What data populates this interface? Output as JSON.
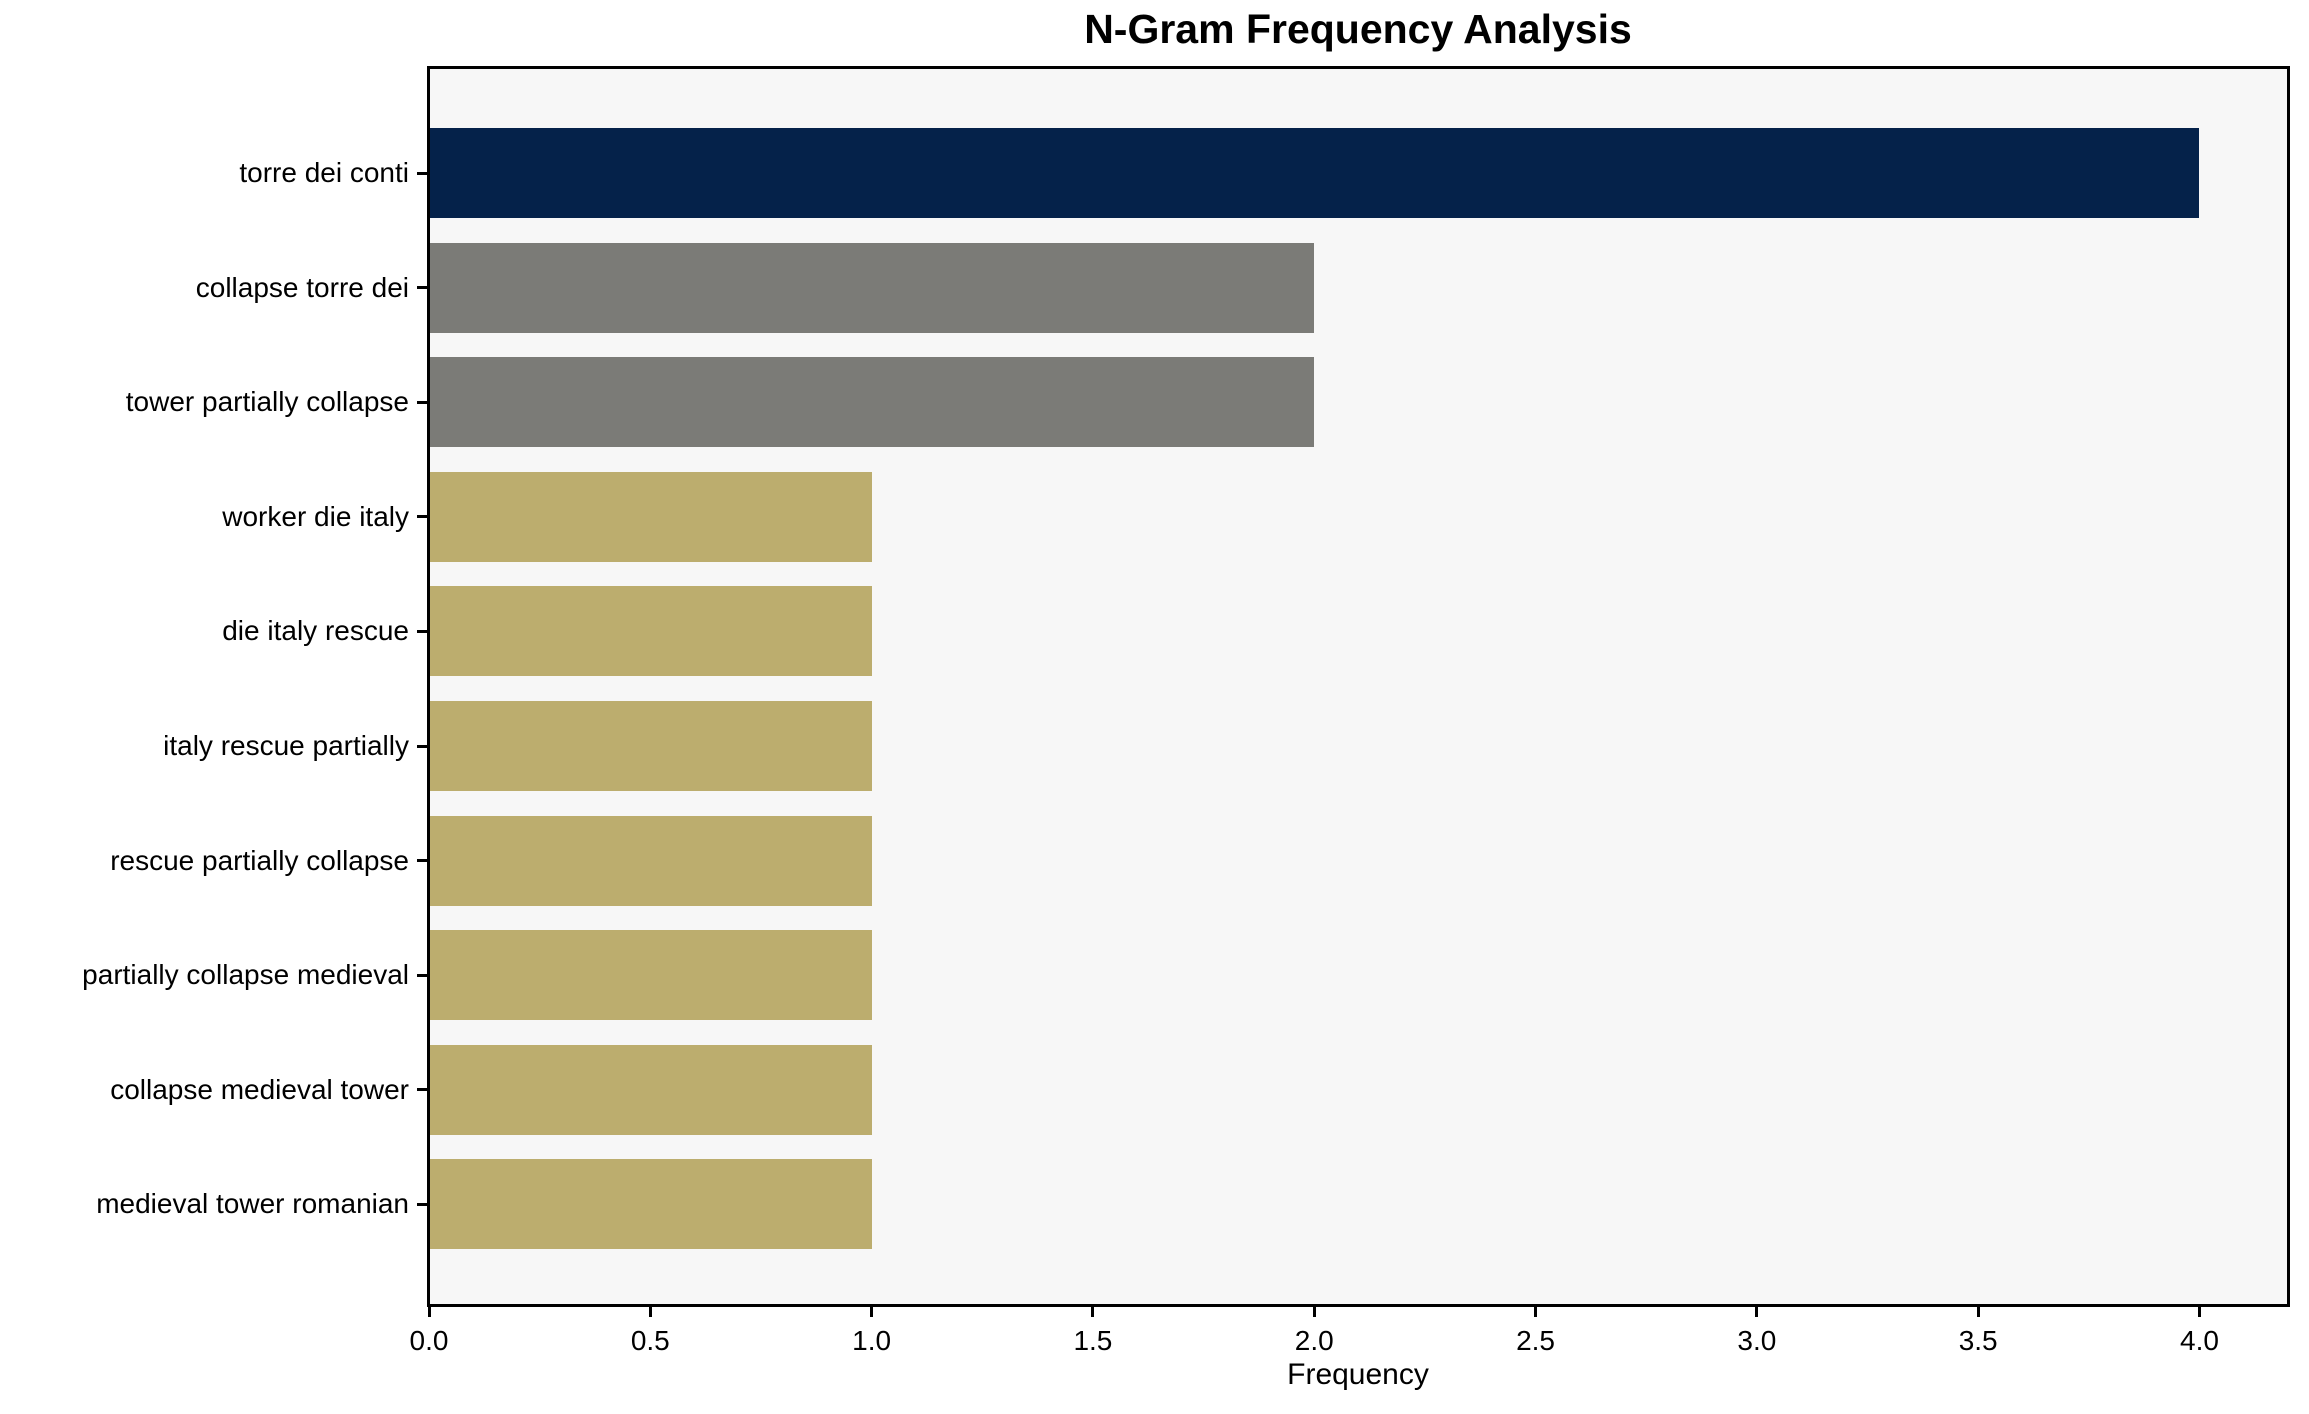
{
  "chart_data": {
    "type": "bar",
    "orientation": "horizontal",
    "title": "N-Gram Frequency Analysis",
    "xlabel": "Frequency",
    "ylabel": "",
    "categories": [
      "torre dei conti",
      "collapse torre dei",
      "tower partially collapse",
      "worker die italy",
      "die italy rescue",
      "italy rescue partially",
      "rescue partially collapse",
      "partially collapse medieval",
      "collapse medieval tower",
      "medieval tower romanian"
    ],
    "values": [
      4,
      2,
      2,
      1,
      1,
      1,
      1,
      1,
      1,
      1
    ],
    "bar_colors": [
      "#05224a",
      "#7b7b77",
      "#7b7b77",
      "#bcad6e",
      "#bcad6e",
      "#bcad6e",
      "#bcad6e",
      "#bcad6e",
      "#bcad6e",
      "#bcad6e"
    ],
    "xlim": [
      0,
      4.2
    ],
    "xticks": [
      0.0,
      0.5,
      1.0,
      1.5,
      2.0,
      2.5,
      3.0,
      3.5,
      4.0
    ],
    "xtick_labels": [
      "0.0",
      "0.5",
      "1.0",
      "1.5",
      "2.0",
      "2.5",
      "3.0",
      "3.5",
      "4.0"
    ],
    "grid": false,
    "legend": null,
    "plot_background": "#f7f7f7",
    "figure_background": "#ffffff",
    "spine_color": "#000000"
  }
}
